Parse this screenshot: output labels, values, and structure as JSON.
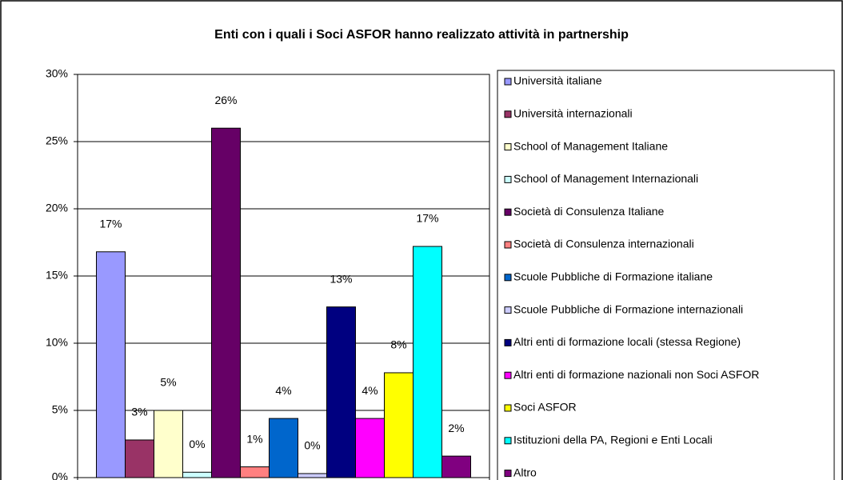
{
  "chart_data": {
    "type": "bar",
    "title": "Enti con i quali i Soci ASFOR hanno realizzato attività in partnership",
    "ylim": [
      0,
      30
    ],
    "yticks": [
      {
        "value": 0,
        "label": "0%"
      },
      {
        "value": 5,
        "label": "5%"
      },
      {
        "value": 10,
        "label": "10%"
      },
      {
        "value": 15,
        "label": "15%"
      },
      {
        "value": 20,
        "label": "20%"
      },
      {
        "value": 25,
        "label": "25%"
      },
      {
        "value": 30,
        "label": "30%"
      }
    ],
    "grid": true,
    "legend": "right",
    "series": [
      {
        "name": "Università italiane",
        "color": "#9999FF",
        "values": [
          16.8
        ],
        "value_labels": [
          "17%"
        ]
      },
      {
        "name": "Università internazionali",
        "color": "#993366",
        "values": [
          2.8
        ],
        "value_labels": [
          "3%"
        ]
      },
      {
        "name": "School of Management Italiane",
        "color": "#FFFFCC",
        "values": [
          5
        ],
        "value_labels": [
          "5%"
        ]
      },
      {
        "name": "School of Management Internazionali",
        "color": "#CCFFFF",
        "values": [
          0.4
        ],
        "value_labels": [
          "0%"
        ]
      },
      {
        "name": "Società di Consulenza Italiane",
        "color": "#660066",
        "values": [
          26
        ],
        "value_labels": [
          "26%"
        ]
      },
      {
        "name": "Società di Consulenza internazionali",
        "color": "#FF8080",
        "values": [
          0.8
        ],
        "value_labels": [
          "1%"
        ]
      },
      {
        "name": "Scuole Pubbliche di Formazione italiane",
        "color": "#0066CC",
        "values": [
          4.4
        ],
        "value_labels": [
          "4%"
        ]
      },
      {
        "name": "Scuole Pubbliche di Formazione internazionali",
        "color": "#CCCCFF",
        "values": [
          0.3
        ],
        "value_labels": [
          "0%"
        ]
      },
      {
        "name": "Altri enti di formazione locali (stessa Regione)",
        "color": "#000080",
        "values": [
          12.7
        ],
        "value_labels": [
          "13%"
        ]
      },
      {
        "name": "Altri enti di formazione nazionali non Soci ASFOR",
        "color": "#FF00FF",
        "values": [
          4.4
        ],
        "value_labels": [
          "4%"
        ]
      },
      {
        "name": "Soci ASFOR",
        "color": "#FFFF00",
        "values": [
          7.8
        ],
        "value_labels": [
          "8%"
        ]
      },
      {
        "name": "Istituzioni della PA, Regioni e Enti Locali",
        "color": "#00FFFF",
        "values": [
          17.2
        ],
        "value_labels": [
          "17%"
        ]
      },
      {
        "name": "Altro",
        "color": "#800080",
        "values": [
          1.6
        ],
        "value_labels": [
          "2%"
        ]
      }
    ]
  }
}
